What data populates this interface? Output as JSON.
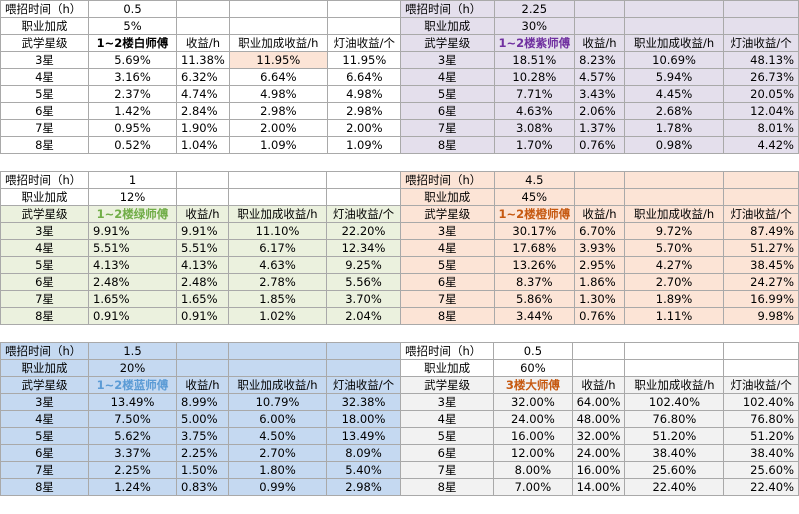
{
  "blocks": [
    {
      "id": "white",
      "feed_label": "喂招时间（h）",
      "feed_value": "0.5",
      "bonus_label": "职业加成",
      "bonus_value": "5%",
      "headers": [
        "武学星级",
        "1~2楼白师傅",
        "收益/h",
        "职业加成收益/h",
        "灯油收益/个"
      ],
      "rows": [
        [
          "3星",
          "5.69%",
          "11.38%",
          "11.95%",
          "11.95%"
        ],
        [
          "4星",
          "3.16%",
          "6.32%",
          "6.64%",
          "6.64%"
        ],
        [
          "5星",
          "2.37%",
          "4.74%",
          "4.98%",
          "4.98%"
        ],
        [
          "6星",
          "1.42%",
          "2.84%",
          "2.98%",
          "2.98%"
        ],
        [
          "7星",
          "0.95%",
          "1.90%",
          "2.00%",
          "2.00%"
        ],
        [
          "8星",
          "0.52%",
          "1.04%",
          "1.09%",
          "1.09%"
        ]
      ],
      "colors": {
        "bg": "#ffffff",
        "top": "#ffffff",
        "title": "#000000",
        "hi": "#fce4d6"
      }
    },
    {
      "id": "purple",
      "feed_label": "喂招时间（h）",
      "feed_value": "2.25",
      "bonus_label": "职业加成",
      "bonus_value": "30%",
      "headers": [
        "武学星级",
        "1~2楼紫师傅",
        "收益/h",
        "职业加成收益/h",
        "灯油收益/个"
      ],
      "rows": [
        [
          "3星",
          "18.51%",
          "8.23%",
          "10.69%",
          "48.13%"
        ],
        [
          "4星",
          "10.28%",
          "4.57%",
          "5.94%",
          "26.73%"
        ],
        [
          "5星",
          "7.71%",
          "3.43%",
          "4.45%",
          "20.05%"
        ],
        [
          "6星",
          "4.63%",
          "2.06%",
          "2.68%",
          "12.04%"
        ],
        [
          "7星",
          "3.08%",
          "1.37%",
          "1.78%",
          "8.01%"
        ],
        [
          "8星",
          "1.70%",
          "0.76%",
          "0.98%",
          "4.42%"
        ]
      ],
      "colors": {
        "bg": "#e4dfec",
        "top": "#e4dfec",
        "title": "#7030a0",
        "hi": "#e4dfec"
      }
    },
    {
      "id": "green",
      "feed_label": "喂招时间（h）",
      "feed_value": "1",
      "bonus_label": "职业加成",
      "bonus_value": "12%",
      "headers": [
        "武学星级",
        "1~2楼绿师傅",
        "收益/h",
        "职业加成收益/h",
        "灯油收益/个"
      ],
      "rows": [
        [
          "3星",
          "9.91%",
          "9.91%",
          "11.10%",
          "22.20%"
        ],
        [
          "4星",
          "5.51%",
          "5.51%",
          "6.17%",
          "12.34%"
        ],
        [
          "5星",
          "4.13%",
          "4.13%",
          "4.63%",
          "9.25%"
        ],
        [
          "6星",
          "2.48%",
          "2.48%",
          "2.78%",
          "5.56%"
        ],
        [
          "7星",
          "1.65%",
          "1.65%",
          "1.85%",
          "3.70%"
        ],
        [
          "8星",
          "0.91%",
          "0.91%",
          "1.02%",
          "2.04%"
        ]
      ],
      "colors": {
        "bg": "#ebf1de",
        "top": "#ffffff",
        "title": "#70ad47",
        "hi": "#ebf1de"
      }
    },
    {
      "id": "orange",
      "feed_label": "喂招时间（h）",
      "feed_value": "4.5",
      "bonus_label": "职业加成",
      "bonus_value": "45%",
      "headers": [
        "武学星级",
        "1~2楼橙师傅",
        "收益/h",
        "职业加成收益/h",
        "灯油收益/个"
      ],
      "rows": [
        [
          "3星",
          "30.17%",
          "6.70%",
          "9.72%",
          "87.49%"
        ],
        [
          "4星",
          "17.68%",
          "3.93%",
          "5.70%",
          "51.27%"
        ],
        [
          "5星",
          "13.26%",
          "2.95%",
          "4.27%",
          "38.45%"
        ],
        [
          "6星",
          "8.37%",
          "1.86%",
          "2.70%",
          "24.27%"
        ],
        [
          "7星",
          "5.86%",
          "1.30%",
          "1.89%",
          "16.99%"
        ],
        [
          "8星",
          "3.44%",
          "0.76%",
          "1.11%",
          "9.98%"
        ]
      ],
      "colors": {
        "bg": "#fce4d6",
        "top": "#fce4d6",
        "title": "#c65911",
        "hi": "#fce4d6"
      }
    },
    {
      "id": "blue",
      "feed_label": "喂招时间（h）",
      "feed_value": "1.5",
      "bonus_label": "职业加成",
      "bonus_value": "20%",
      "headers": [
        "武学星级",
        "1~2楼蓝师傅",
        "收益/h",
        "职业加成收益/h",
        "灯油收益/个"
      ],
      "rows": [
        [
          "3星",
          "13.49%",
          "8.99%",
          "10.79%",
          "32.38%"
        ],
        [
          "4星",
          "7.50%",
          "5.00%",
          "6.00%",
          "18.00%"
        ],
        [
          "5星",
          "5.62%",
          "3.75%",
          "4.50%",
          "13.49%"
        ],
        [
          "6星",
          "3.37%",
          "2.25%",
          "2.70%",
          "8.09%"
        ],
        [
          "7星",
          "2.25%",
          "1.50%",
          "1.80%",
          "5.40%"
        ],
        [
          "8星",
          "1.24%",
          "0.83%",
          "0.99%",
          "2.98%"
        ]
      ],
      "colors": {
        "bg": "#c5d9f1",
        "top": "#c5d9f1",
        "title": "#5b9bd5",
        "hi": "#c5d9f1"
      }
    },
    {
      "id": "grand",
      "feed_label": "喂招时间（h）",
      "feed_value": "0.5",
      "bonus_label": "职业加成",
      "bonus_value": "60%",
      "headers": [
        "武学星级",
        "3楼大师傅",
        "收益/h",
        "职业加成收益/h",
        "灯油收益/个"
      ],
      "rows": [
        [
          "3星",
          "32.00%",
          "64.00%",
          "102.40%",
          "102.40%"
        ],
        [
          "4星",
          "24.00%",
          "48.00%",
          "76.80%",
          "76.80%"
        ],
        [
          "5星",
          "16.00%",
          "32.00%",
          "51.20%",
          "51.20%"
        ],
        [
          "6星",
          "12.00%",
          "24.00%",
          "38.40%",
          "38.40%"
        ],
        [
          "7星",
          "8.00%",
          "16.00%",
          "25.60%",
          "25.60%"
        ],
        [
          "8星",
          "7.00%",
          "14.00%",
          "22.40%",
          "22.40%"
        ]
      ],
      "colors": {
        "bg": "#f2f2f2",
        "top": "#ffffff",
        "title": "#c65911",
        "hi": "#f2f2f2"
      }
    }
  ]
}
